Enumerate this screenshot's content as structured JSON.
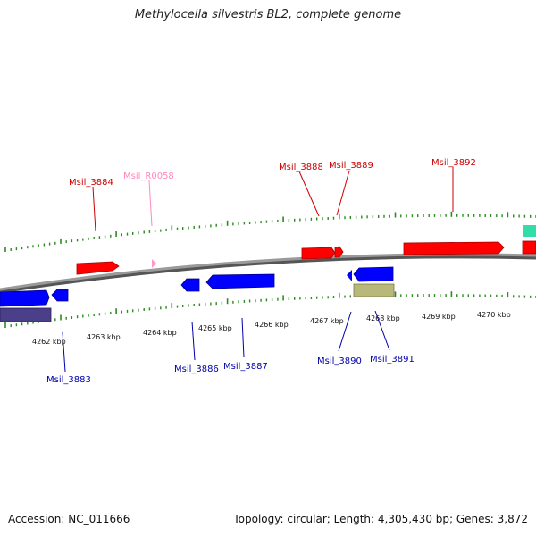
{
  "title": "Methylocella silvestris BL2, complete genome",
  "footer": {
    "accession": "Accession: NC_011666",
    "summary": "Topology: circular; Length: 4,305,430 bp; Genes: 3,872"
  },
  "colors": {
    "forward_cds": "#ff0000",
    "reverse_cds": "#0000ff",
    "rna": "#ff99cc",
    "other_feature": "#b8b87a",
    "reverse_other": "#4b3f8a",
    "forward_other": "#33ddaa",
    "tick": "#2e8b22",
    "backbone": "#888888",
    "label_forward": "#cc0000",
    "label_reverse": "#0000aa",
    "label_rna": "#ff88bb"
  },
  "axis_labels": [
    "4262 kbp",
    "4263 kbp",
    "4264 kbp",
    "4265 kbp",
    "4266 kbp",
    "4267 kbp",
    "4268 kbp",
    "4269 kbp",
    "4270 kbp"
  ],
  "gene_labels": {
    "forward": [
      "Msil_3884",
      "Msil_3888",
      "Msil_3889",
      "Msil_3892"
    ],
    "rna": [
      "Msil_R0058"
    ],
    "reverse": [
      "Msil_3883",
      "Msil_3886",
      "Msil_3887",
      "Msil_3890",
      "Msil_3891"
    ]
  }
}
